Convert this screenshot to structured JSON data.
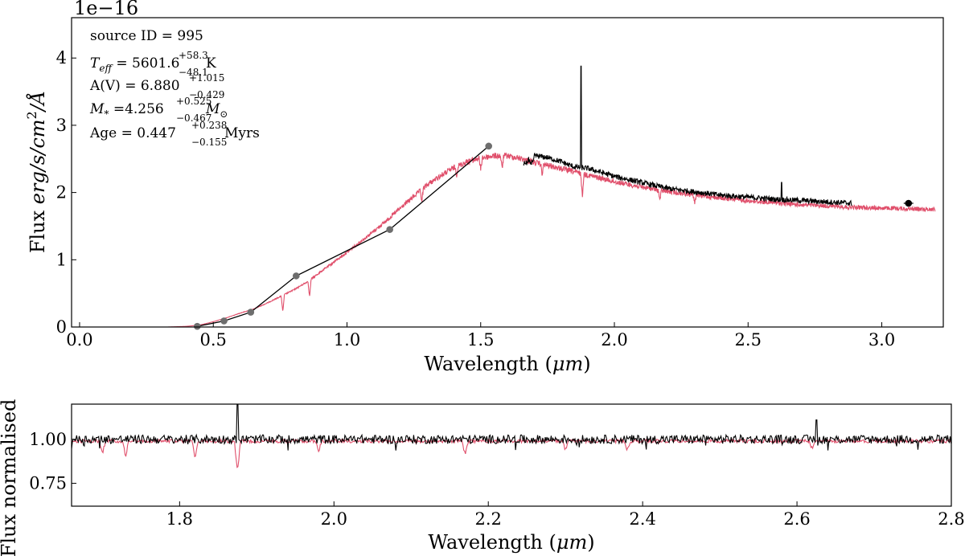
{
  "chart_data": [
    {
      "type": "line",
      "ylabel_prefix": "Flux ",
      "ylabel_units": "erg/s/cm",
      "ylabel_sup": "2",
      "ylabel_suffix": "/Å",
      "xlabel_prefix": "Wavelength (",
      "xlabel_unit": "μm",
      "xlabel_suffix": ")",
      "offset_text": "1e−16",
      "xlim": [
        -0.03,
        3.23
      ],
      "ylim": [
        0,
        4.6
      ],
      "xticks": [
        0.0,
        0.5,
        1.0,
        1.5,
        2.0,
        2.5,
        3.0
      ],
      "xtick_labels": [
        "0.0",
        "0.5",
        "1.0",
        "1.5",
        "2.0",
        "2.5",
        "3.0"
      ],
      "yticks": [
        0,
        1,
        2,
        3,
        4
      ],
      "ytick_labels": [
        "0",
        "1",
        "2",
        "3",
        "4"
      ],
      "annotations": {
        "source": "source ID = 995",
        "teff": {
          "label": "T",
          "label_sub": "eff",
          "value": " = 5601.6",
          "plus": "+58.3",
          "minus": "−48.1",
          "unit": "K"
        },
        "av": {
          "label": "A(V) = 6.880",
          "plus": "+1.015",
          "minus": "−0.429"
        },
        "mass": {
          "label": "M",
          "label_sub": "*",
          "value": " =4.256",
          "plus": "+0.525",
          "minus": "−0.467",
          "unit": "M",
          "unit_sub": "⊙"
        },
        "age": {
          "label": "Age = 0.447",
          "plus": "+0.238",
          "minus": "−0.155",
          "unit": " Myrs"
        }
      },
      "series": [
        {
          "kind": "model",
          "color": "#e04f6b",
          "x": [
            0.33,
            0.4,
            0.45,
            0.5,
            0.55,
            0.6,
            0.65,
            0.7,
            0.75,
            0.8,
            0.85,
            0.9,
            0.95,
            1.0,
            1.05,
            1.1,
            1.15,
            1.2,
            1.25,
            1.3,
            1.35,
            1.4,
            1.45,
            1.5,
            1.55,
            1.6,
            1.65,
            1.7,
            1.8,
            1.9,
            2.0,
            2.1,
            2.2,
            2.3,
            2.4,
            2.5,
            2.6,
            2.7,
            2.8,
            2.9,
            3.0,
            3.1,
            3.2
          ],
          "y": [
            0.0,
            0.01,
            0.03,
            0.08,
            0.14,
            0.21,
            0.27,
            0.36,
            0.46,
            0.56,
            0.68,
            0.83,
            0.98,
            1.13,
            1.29,
            1.45,
            1.62,
            1.8,
            1.98,
            2.15,
            2.29,
            2.41,
            2.5,
            2.56,
            2.59,
            2.59,
            2.55,
            2.49,
            2.4,
            2.3,
            2.2,
            2.12,
            2.05,
            2.0,
            1.95,
            1.91,
            1.88,
            1.85,
            1.83,
            1.81,
            1.8,
            1.79,
            1.78
          ],
          "absorption_lines": [
            {
              "x": 0.76,
              "depth": 0.25
            },
            {
              "x": 0.86,
              "depth": 0.25
            },
            {
              "x": 1.28,
              "depth": 0.18
            },
            {
              "x": 1.41,
              "depth": 0.12
            },
            {
              "x": 1.5,
              "depth": 0.18
            },
            {
              "x": 1.58,
              "depth": 0.2
            },
            {
              "x": 1.73,
              "depth": 0.15
            },
            {
              "x": 1.88,
              "depth": 0.35
            },
            {
              "x": 2.17,
              "depth": 0.15
            },
            {
              "x": 2.3,
              "depth": 0.12
            }
          ]
        },
        {
          "kind": "spectrum",
          "color": "#000000",
          "x": [
            1.66,
            1.7,
            1.75,
            1.8,
            1.85,
            1.9,
            2.0,
            2.1,
            2.2,
            2.3,
            2.4,
            2.5,
            2.6,
            2.7,
            2.8,
            2.89
          ],
          "y": [
            2.45,
            2.55,
            2.52,
            2.46,
            2.38,
            2.36,
            2.24,
            2.15,
            2.06,
            2.01,
            1.96,
            1.93,
            1.9,
            1.88,
            1.86,
            1.84
          ],
          "emission_lines": [
            {
              "x": 1.875,
              "peak": 3.88
            },
            {
              "x": 2.625,
              "peak": 2.15
            }
          ]
        },
        {
          "kind": "photometry",
          "color": "#6e6e6e",
          "x": [
            0.44,
            0.54,
            0.64,
            0.81,
            1.16,
            1.53
          ],
          "y": [
            0.01,
            0.09,
            0.22,
            0.76,
            1.45,
            2.69
          ]
        },
        {
          "kind": "photometry-outlier",
          "color": "#000000",
          "x": [
            3.1
          ],
          "y": [
            1.84
          ]
        }
      ]
    },
    {
      "type": "line",
      "ylabel": "Flux normalised",
      "xlabel_prefix": "Wavelength (",
      "xlabel_unit": "μm",
      "xlabel_suffix": ")",
      "xlim": [
        1.66,
        2.8
      ],
      "ylim": [
        0.62,
        1.2
      ],
      "xticks": [
        1.8,
        2.0,
        2.2,
        2.4,
        2.6,
        2.8
      ],
      "xtick_labels": [
        "1.8",
        "2.0",
        "2.2",
        "2.4",
        "2.6",
        "2.8"
      ],
      "yticks": [
        0.75,
        1.0
      ],
      "ytick_labels": [
        "0.75",
        "1.00"
      ],
      "series": [
        {
          "kind": "model-normalised",
          "color": "#e04f6b",
          "level": 1.0,
          "absorption_lines": [
            {
              "x": 1.7,
              "depth": 0.07
            },
            {
              "x": 1.73,
              "depth": 0.09
            },
            {
              "x": 1.82,
              "depth": 0.09
            },
            {
              "x": 1.875,
              "depth": 0.18
            },
            {
              "x": 1.98,
              "depth": 0.06
            },
            {
              "x": 2.17,
              "depth": 0.08
            },
            {
              "x": 2.3,
              "depth": 0.05
            },
            {
              "x": 2.38,
              "depth": 0.05
            },
            {
              "x": 2.62,
              "depth": 0.05
            }
          ]
        },
        {
          "kind": "spectrum-normalised",
          "color": "#000000",
          "level": 1.0,
          "emission_lines": [
            {
              "x": 1.875,
              "peak": 1.2
            },
            {
              "x": 2.625,
              "peak": 1.11
            }
          ]
        }
      ]
    }
  ]
}
